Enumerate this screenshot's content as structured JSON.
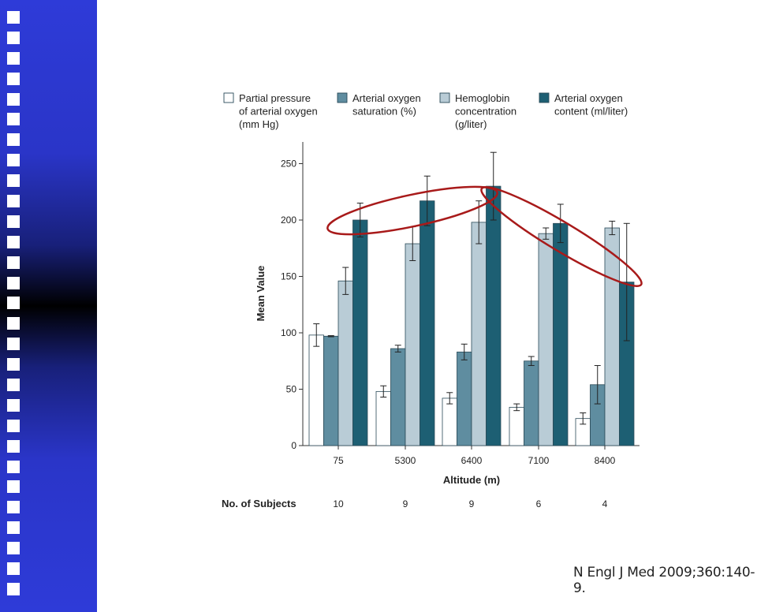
{
  "sidebar": {
    "square_count": 29,
    "accent": "#2e3bd8"
  },
  "legend": [
    {
      "label_lines": [
        "Partial pressure",
        "of arterial oxygen",
        "(mm Hg)"
      ],
      "color": "#ffffff"
    },
    {
      "label_lines": [
        "Arterial oxygen",
        "saturation (%)"
      ],
      "color": "#5f8da0"
    },
    {
      "label_lines": [
        "Hemoglobin",
        "concentration",
        "(g/liter)"
      ],
      "color": "#b9ccd6"
    },
    {
      "label_lines": [
        "Arterial oxygen",
        "content (ml/liter)"
      ],
      "color": "#1d5f73"
    }
  ],
  "subjects": {
    "label": "No. of Subjects",
    "counts": [
      "10",
      "9",
      "9",
      "6",
      "4"
    ]
  },
  "citation": "N Engl J Med 2009;360:140-9.",
  "annotation_color": "#a81a1a",
  "chart_data": {
    "type": "bar",
    "xlabel": "Altitude (m)",
    "ylabel": "Mean Value",
    "categories": [
      "75",
      "5300",
      "6400",
      "7100",
      "8400"
    ],
    "ylim": [
      0,
      270
    ],
    "yticks": [
      0,
      50,
      100,
      150,
      200,
      250
    ],
    "series": [
      {
        "name": "Partial pressure of arterial oxygen (mm Hg)",
        "values": [
          98,
          48,
          42,
          34,
          24
        ],
        "errors": [
          10,
          5,
          5,
          3,
          5
        ]
      },
      {
        "name": "Arterial oxygen saturation (%)",
        "values": [
          97,
          86,
          83,
          75,
          54
        ],
        "errors": [
          0.5,
          3,
          7,
          4,
          17
        ]
      },
      {
        "name": "Hemoglobin concentration (g/liter)",
        "values": [
          146,
          179,
          198,
          188,
          193
        ],
        "errors": [
          12,
          15,
          19,
          5,
          6
        ]
      },
      {
        "name": "Arterial oxygen content (ml/liter)",
        "values": [
          200,
          217,
          230,
          197,
          145
        ],
        "errors": [
          15,
          22,
          30,
          17,
          52
        ]
      }
    ]
  }
}
